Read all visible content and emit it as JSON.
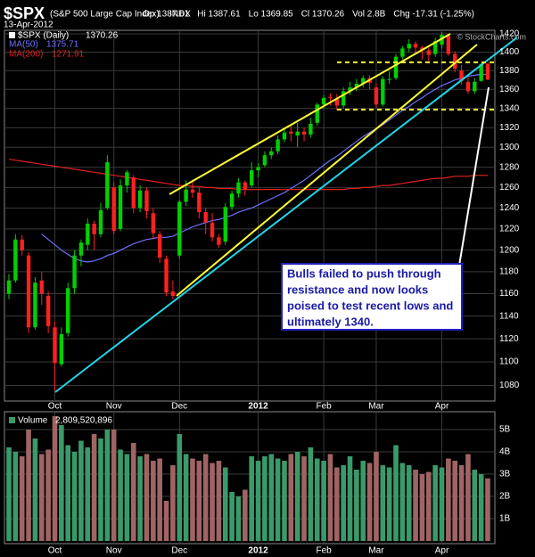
{
  "chart_data": {
    "type": "candlestick",
    "title": "$SPX",
    "subtitle": "(S&P 500 Large Cap Index)",
    "exchange": "INDX",
    "date": "13-Apr-2012",
    "stats": [
      "Op 1387.61",
      "Hi 1387.61",
      "Lo 1369.85",
      "Cl 1370.26",
      "Vol 2.8B",
      "Chg -17.31 (-1.25%)"
    ],
    "source": "© StockCharts.com",
    "price_name": "$SPX (Daily)",
    "categories": [
      null,
      null,
      null,
      null,
      null,
      null,
      null,
      "Oct",
      null,
      null,
      null,
      null,
      null,
      null,
      null,
      null,
      "Nov",
      null,
      null,
      null,
      null,
      null,
      null,
      null,
      null,
      null,
      "Dec",
      null,
      null,
      null,
      null,
      null,
      null,
      null,
      null,
      null,
      null,
      null,
      "2012",
      null,
      null,
      null,
      null,
      null,
      null,
      null,
      null,
      null,
      "Feb",
      null,
      null,
      null,
      null,
      null,
      null,
      null,
      "Mar",
      null,
      null,
      null,
      null,
      null,
      null,
      null,
      null,
      null,
      "Apr",
      null,
      null,
      null,
      null,
      null,
      null,
      null
    ],
    "open": [
      1160,
      1172,
      1210,
      1195,
      1130,
      1172,
      1158,
      1130,
      1098,
      1125,
      1165,
      1195,
      1205,
      1225,
      1215,
      1240,
      1260,
      1220,
      1262,
      1270,
      1240,
      1257,
      1235,
      1215,
      1192,
      1162,
      1195,
      1246,
      1258,
      1255,
      1236,
      1226,
      1212,
      1208,
      1241,
      1254,
      1265,
      1262,
      1277,
      1282,
      1292,
      1296,
      1308,
      1316,
      1312,
      1316,
      1313,
      1325,
      1344,
      1352,
      1350,
      1343,
      1358,
      1362,
      1366,
      1372,
      1362,
      1344,
      1371,
      1372,
      1395,
      1404,
      1409,
      1405,
      1402,
      1398,
      1408,
      1418,
      1398,
      1380,
      1368,
      1358,
      1369,
      1387.61
    ],
    "high": [
      1178,
      1215,
      1214,
      1198,
      1175,
      1180,
      1162,
      1135,
      1130,
      1170,
      1200,
      1210,
      1230,
      1228,
      1245,
      1292,
      1265,
      1268,
      1277,
      1272,
      1262,
      1260,
      1240,
      1218,
      1195,
      1172,
      1248,
      1267,
      1268,
      1260,
      1240,
      1235,
      1215,
      1245,
      1257,
      1269,
      1267,
      1285,
      1284,
      1296,
      1300,
      1312,
      1320,
      1322,
      1325,
      1320,
      1330,
      1346,
      1354,
      1356,
      1355,
      1362,
      1368,
      1371,
      1375,
      1375,
      1366,
      1374,
      1379,
      1398,
      1407,
      1414,
      1412,
      1407,
      1405,
      1416,
      1422,
      1420,
      1401,
      1386,
      1374,
      1372,
      1388,
      1387.61
    ],
    "low": [
      1155,
      1170,
      1195,
      1125,
      1128,
      1150,
      1125,
      1075,
      1096,
      1122,
      1160,
      1185,
      1200,
      1200,
      1212,
      1238,
      1215,
      1218,
      1255,
      1235,
      1236,
      1230,
      1210,
      1188,
      1158,
      1155,
      1192,
      1242,
      1250,
      1230,
      1215,
      1208,
      1202,
      1205,
      1238,
      1250,
      1252,
      1260,
      1270,
      1280,
      1288,
      1293,
      1305,
      1306,
      1300,
      1306,
      1310,
      1322,
      1340,
      1343,
      1338,
      1340,
      1354,
      1358,
      1362,
      1360,
      1340,
      1342,
      1366,
      1370,
      1392,
      1400,
      1398,
      1392,
      1390,
      1395,
      1404,
      1396,
      1378,
      1365,
      1355,
      1355,
      1368,
      1369.85
    ],
    "close": [
      1172,
      1210,
      1200,
      1130,
      1170,
      1160,
      1131,
      1099,
      1124,
      1165,
      1195,
      1207,
      1225,
      1215,
      1238,
      1285,
      1218,
      1262,
      1275,
      1240,
      1257,
      1237,
      1216,
      1193,
      1161,
      1158,
      1246,
      1258,
      1255,
      1236,
      1226,
      1212,
      1205,
      1241,
      1254,
      1265,
      1258,
      1277,
      1280,
      1292,
      1296,
      1308,
      1315,
      1314,
      1316,
      1313,
      1324,
      1344,
      1351,
      1351,
      1343,
      1358,
      1362,
      1366,
      1372,
      1367,
      1344,
      1371,
      1371,
      1395,
      1404,
      1409,
      1405,
      1402,
      1397,
      1412,
      1419,
      1398,
      1382,
      1369,
      1358,
      1368,
      1387,
      1370.26
    ],
    "up_color": "#00d000",
    "down_color": "#ff2020",
    "series": [
      {
        "name": "MA(50)",
        "color": "#7070ff",
        "values": [
          null,
          null,
          null,
          null,
          null,
          1215,
          1210,
          1205,
          1200,
          1196,
          1192,
          1190,
          1189,
          1190,
          1192,
          1195,
          1197,
          1200,
          1203,
          1206,
          1208,
          1210,
          1211,
          1212,
          1212,
          1213,
          1216,
          1219,
          1222,
          1224,
          1226,
          1228,
          1229,
          1231,
          1233,
          1236,
          1238,
          1240,
          1243,
          1246,
          1249,
          1252,
          1255,
          1259,
          1263,
          1267,
          1272,
          1277,
          1282,
          1287,
          1291,
          1296,
          1301,
          1306,
          1311,
          1315,
          1319,
          1323,
          1328,
          1333,
          1338,
          1342,
          1347,
          1351,
          1356,
          1360,
          1364,
          1367,
          1370,
          1372,
          1374,
          1375,
          1376,
          1375.71
        ]
      },
      {
        "name": "MA(200)",
        "color": "#e02020",
        "values": [
          1288,
          1287,
          1286,
          1285,
          1284,
          1283,
          1282,
          1281,
          1280,
          1279,
          1278,
          1277,
          1276,
          1275,
          1274,
          1273,
          1272,
          1271,
          1270,
          1269,
          1268,
          1267,
          1266,
          1265,
          1264,
          1263,
          1262,
          1262,
          1261,
          1261,
          1260,
          1260,
          1259,
          1259,
          1259,
          1258,
          1258,
          1258,
          1258,
          1258,
          1258,
          1258,
          1258,
          1258,
          1258,
          1258,
          1258,
          1258,
          1258,
          1258,
          1258,
          1258,
          1259,
          1259,
          1260,
          1260,
          1261,
          1262,
          1262,
          1263,
          1264,
          1265,
          1266,
          1267,
          1268,
          1269,
          1269,
          1270,
          1271,
          1271,
          1271,
          1272,
          1272,
          1271.91
        ]
      }
    ],
    "ylim": [
      1067,
      1423
    ],
    "log_scale": true,
    "grid": true,
    "yticks": [
      1080,
      1100,
      1120,
      1140,
      1160,
      1180,
      1200,
      1220,
      1240,
      1260,
      1280,
      1300,
      1320,
      1340,
      1360,
      1380,
      1400,
      1420
    ],
    "volume": {
      "name": "Volume",
      "legend_value": "2,809,520,896",
      "up_color": "#3a9a6a",
      "down_color": "#a06464",
      "values": [
        4200000000,
        4000000000,
        3800000000,
        5000000000,
        4600000000,
        3900000000,
        4100000000,
        5600000000,
        5200000000,
        4300000000,
        4000000000,
        4500000000,
        4200000000,
        4800000000,
        4600000000,
        5000000000,
        5000000000,
        4100000000,
        3900000000,
        4400000000,
        3800000000,
        3900000000,
        3600000000,
        3700000000,
        1800000000,
        3400000000,
        4800000000,
        3900000000,
        3700000000,
        3600000000,
        3900000000,
        3500000000,
        3600000000,
        3300000000,
        2200000000,
        2000000000,
        2300000000,
        3800000000,
        3600000000,
        3800000000,
        3900000000,
        3700000000,
        3600000000,
        3900000000,
        4000000000,
        3800000000,
        4200000000,
        3700000000,
        3600000000,
        3900000000,
        3300000000,
        3400000000,
        3800000000,
        3200000000,
        3600000000,
        3500000000,
        4000000000,
        3400000000,
        3300000000,
        4300000000,
        3500000000,
        3400000000,
        3200000000,
        3000000000,
        3100000000,
        3400000000,
        3300000000,
        3700000000,
        3600000000,
        3400000000,
        3900000000,
        3200000000,
        3000000000,
        2809520896
      ],
      "ylim": [
        0,
        5800000000
      ],
      "yticks": [
        {
          "value": 1000000000,
          "label": "1B"
        },
        {
          "value": 2000000000,
          "label": "2B"
        },
        {
          "value": 3000000000,
          "label": "3B"
        },
        {
          "value": 4000000000,
          "label": "4B"
        },
        {
          "value": 5000000000,
          "label": "5B"
        }
      ]
    },
    "annotation": [
      "Bulls failed to push through",
      "resistance and now looks",
      "poised to test recent lows and",
      "ultimately 1340."
    ]
  }
}
